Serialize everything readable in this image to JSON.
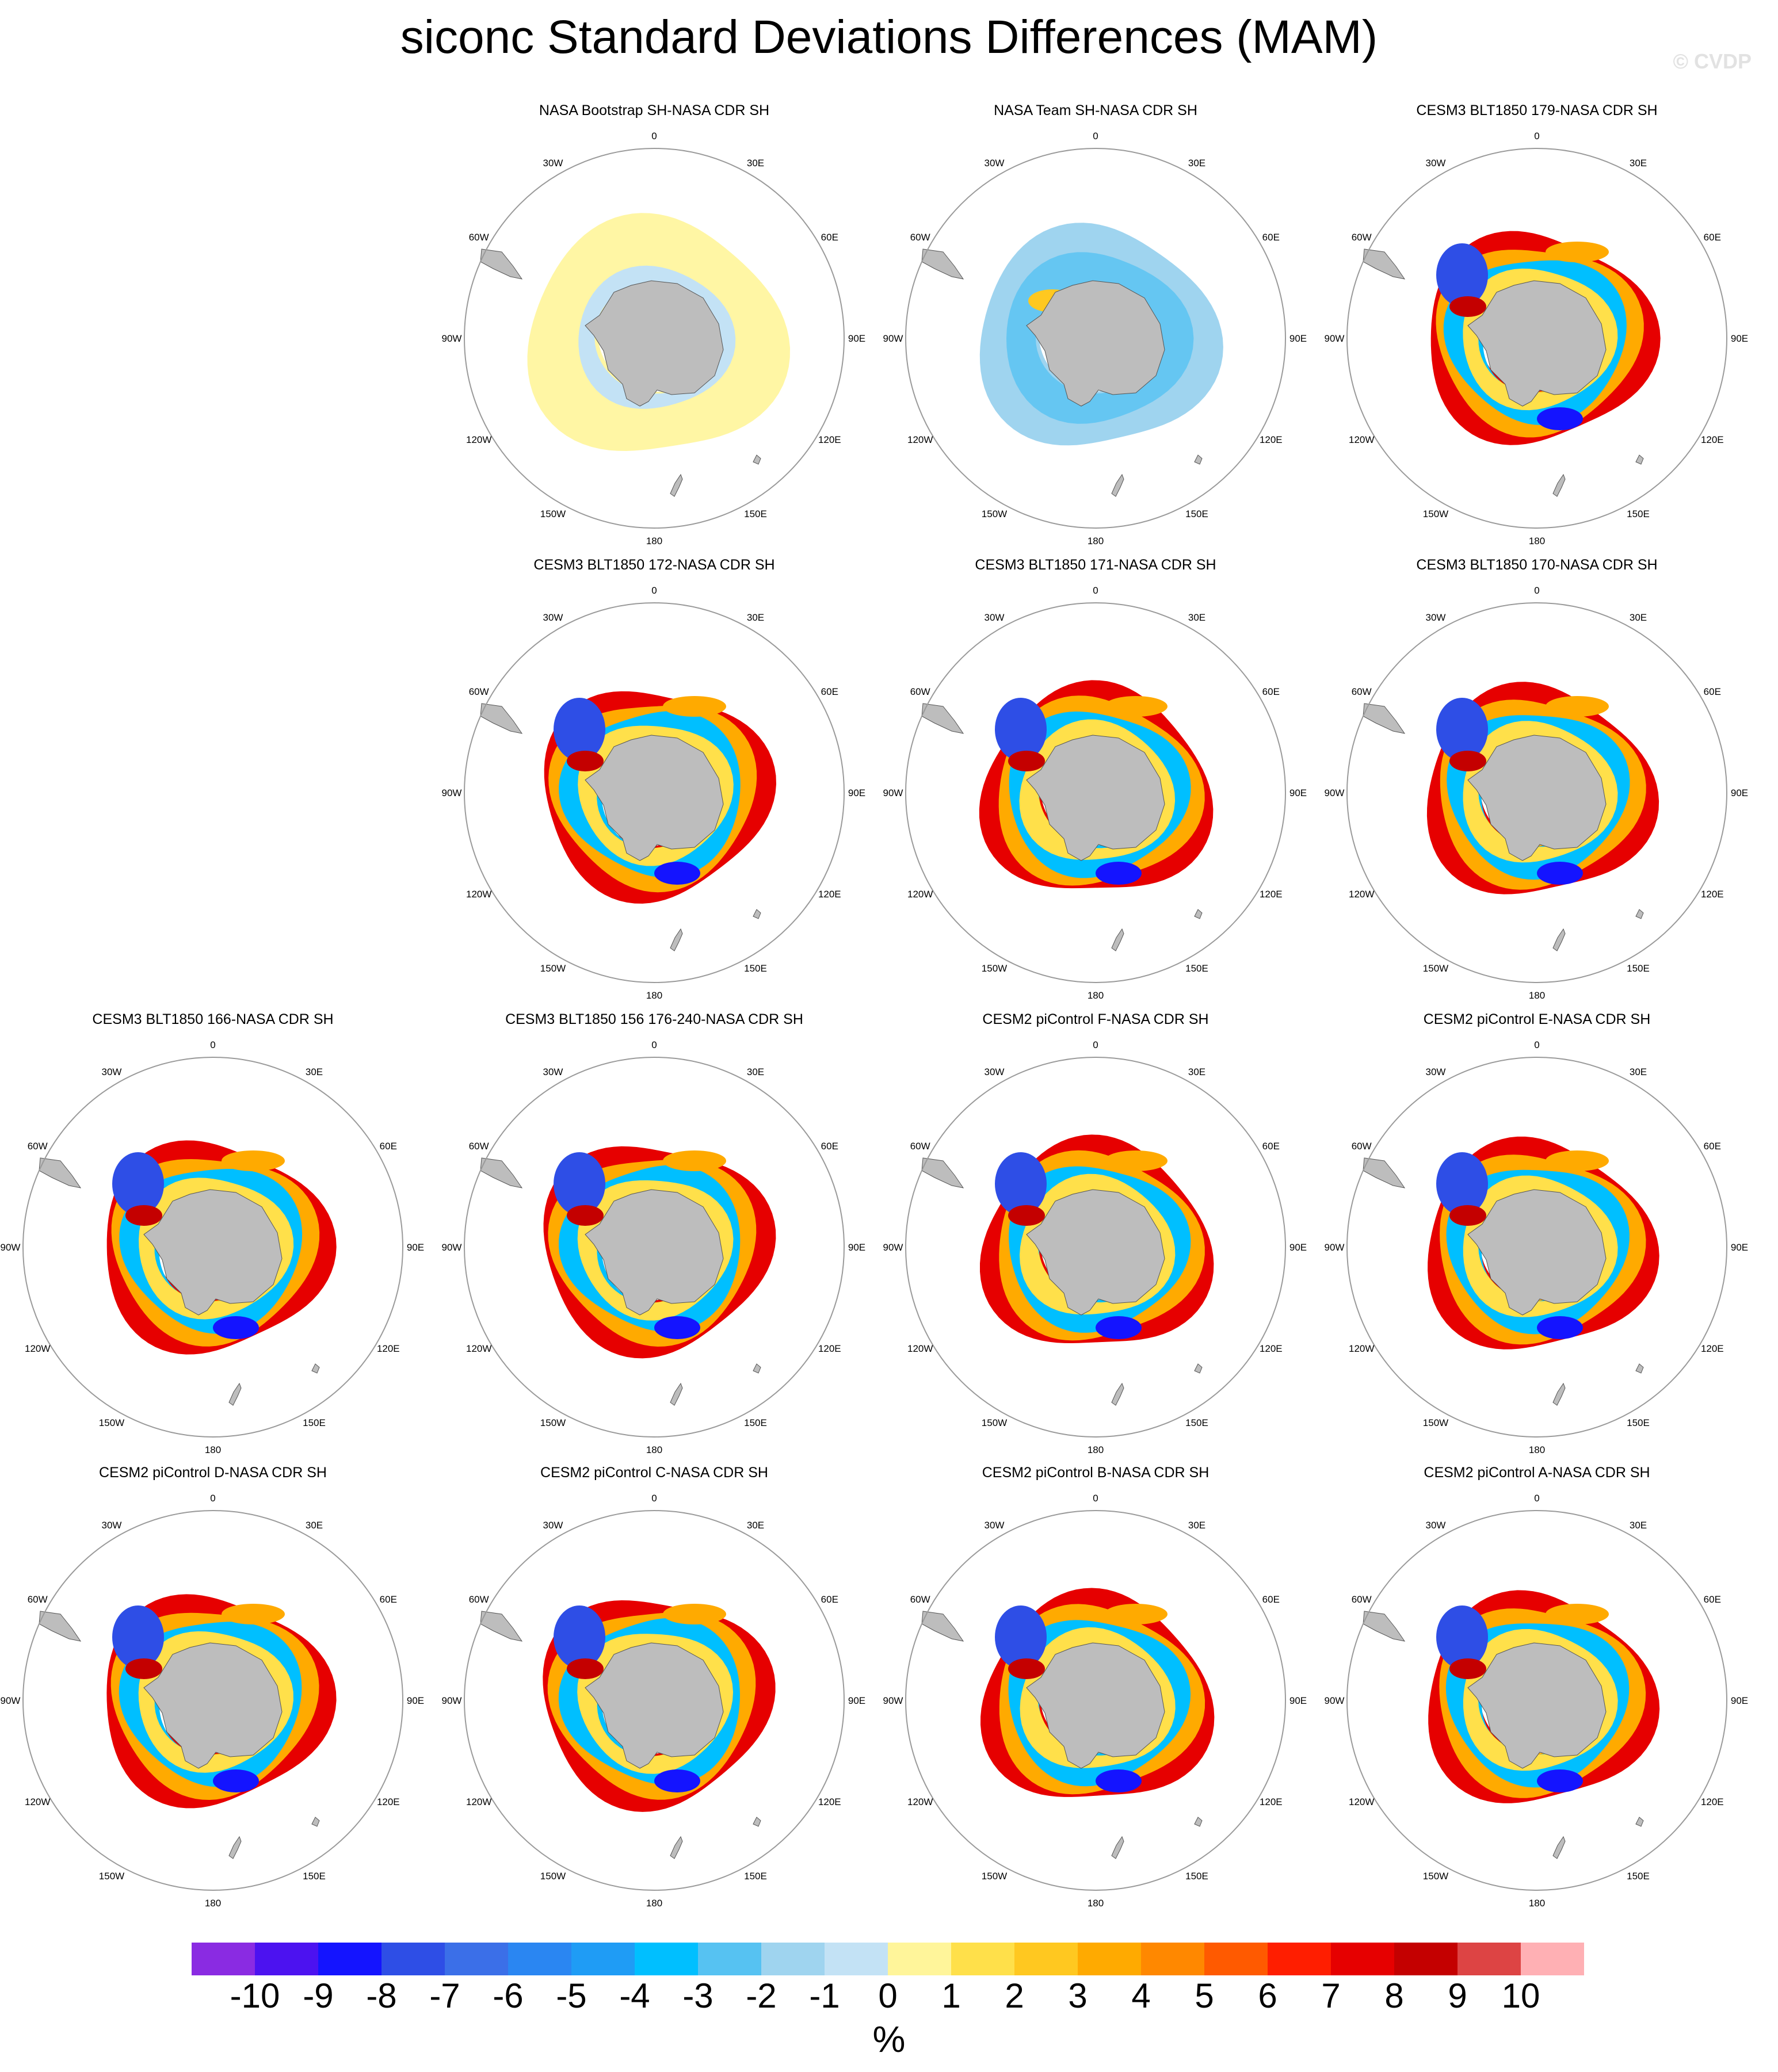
{
  "title": "siconc Standard Deviations Differences (MAM)",
  "watermark": "© CVDP",
  "map_labels": {
    "n0": "0",
    "n30e": "30E",
    "n60e": "60E",
    "n90e": "90E",
    "n120e": "120E",
    "n150e": "150E",
    "n180": "180",
    "n150w": "150W",
    "n120w": "120W",
    "n90w": "90W",
    "n60w": "60W",
    "n30w": "30W"
  },
  "panels": [
    {
      "title": "NASA Bootstrap SH-NASA CDR SH",
      "pattern": "bootstrap"
    },
    {
      "title": "NASA Team SH-NASA CDR SH",
      "pattern": "team"
    },
    {
      "title": "CESM3 BLT1850 179-NASA CDR SH",
      "pattern": "model"
    },
    {
      "title": "CESM3 BLT1850 172-NASA CDR SH",
      "pattern": "model"
    },
    {
      "title": "CESM3 BLT1850 171-NASA CDR SH",
      "pattern": "model"
    },
    {
      "title": "CESM3 BLT1850 170-NASA CDR SH",
      "pattern": "model"
    },
    {
      "title": "CESM3 BLT1850 166-NASA CDR SH",
      "pattern": "model"
    },
    {
      "title": "CESM3 BLT1850 156 176-240-NASA CDR SH",
      "pattern": "model"
    },
    {
      "title": "CESM2 piControl F-NASA CDR SH",
      "pattern": "model"
    },
    {
      "title": "CESM2 piControl E-NASA CDR SH",
      "pattern": "model"
    },
    {
      "title": "CESM2 piControl D-NASA CDR SH",
      "pattern": "model"
    },
    {
      "title": "CESM2 piControl C-NASA CDR SH",
      "pattern": "model"
    },
    {
      "title": "CESM2 piControl B-NASA CDR SH",
      "pattern": "model"
    },
    {
      "title": "CESM2 piControl A-NASA CDR SH",
      "pattern": "model"
    }
  ],
  "colorbar": {
    "unit": "%",
    "labels": [
      "-10",
      "-9",
      "-8",
      "-7",
      "-6",
      "-5",
      "-4",
      "-3",
      "-2",
      "-1",
      "0",
      "1",
      "2",
      "3",
      "4",
      "5",
      "6",
      "7",
      "8",
      "9",
      "10"
    ],
    "colors": [
      "#8a2be2",
      "#4c12f0",
      "#1414ff",
      "#2e4ee6",
      "#3b6fe8",
      "#2a86f2",
      "#1f9cf5",
      "#00bfff",
      "#56c2f2",
      "#9fd4ef",
      "#c3e2f5",
      "#fff59a",
      "#ffe04a",
      "#ffc820",
      "#ffaa00",
      "#ff8800",
      "#ff5a00",
      "#ff1e00",
      "#e60000",
      "#c40000",
      "#dd4444",
      "#ffb0b4"
    ]
  },
  "legend": {
    "land": "#bdbdbd",
    "frame": "#9a9a9a"
  }
}
